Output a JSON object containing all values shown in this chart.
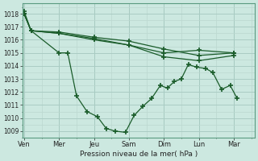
{
  "xlabel": "Pression niveau de la mer( hPa )",
  "bg_color": "#cce8e0",
  "grid_major_color": "#aaccc4",
  "grid_minor_color": "#bcd8d0",
  "line_color": "#1a5c2a",
  "ylim": [
    1008.5,
    1018.8
  ],
  "yticks": [
    1009,
    1010,
    1011,
    1012,
    1013,
    1014,
    1015,
    1016,
    1017,
    1018
  ],
  "xtick_labels": [
    "Ven",
    "Mer",
    "Jeu",
    "Sam",
    "Dim",
    "Lun",
    "Mar"
  ],
  "xtick_positions": [
    0,
    2,
    4,
    6,
    8,
    10,
    12
  ],
  "xlim": [
    -0.1,
    13.2
  ],
  "line1_x": [
    0,
    0.4,
    2.0,
    4.0,
    6.0,
    8.0,
    10.0,
    12.0
  ],
  "line1_y": [
    1018.0,
    1016.7,
    1016.6,
    1016.2,
    1015.9,
    1015.3,
    1014.8,
    1015.0
  ],
  "line2_x": [
    0,
    0.4,
    2.0,
    4.0,
    6.0,
    8.0,
    10.0,
    12.0
  ],
  "line2_y": [
    1018.0,
    1016.7,
    1016.5,
    1016.1,
    1015.6,
    1014.7,
    1014.4,
    1014.8
  ],
  "line3_x": [
    0,
    0.4,
    2.0,
    4.0,
    6.0,
    8.0,
    10.0,
    12.0
  ],
  "line3_y": [
    1018.0,
    1016.7,
    1016.5,
    1016.0,
    1015.6,
    1015.0,
    1015.2,
    1015.0
  ],
  "line4_x": [
    0,
    0.4,
    2.0,
    2.5,
    3.0,
    3.6,
    4.2,
    4.7,
    5.2,
    5.8,
    6.3,
    6.8,
    7.3,
    7.8,
    8.2,
    8.6,
    9.0,
    9.4,
    9.9,
    10.4,
    10.8,
    11.3,
    11.8,
    12.2
  ],
  "line4_y": [
    1018.2,
    1016.7,
    1015.0,
    1015.0,
    1011.7,
    1010.5,
    1010.1,
    1009.2,
    1009.0,
    1008.9,
    1010.2,
    1010.9,
    1011.5,
    1012.5,
    1012.3,
    1012.8,
    1013.0,
    1014.1,
    1013.9,
    1013.8,
    1013.5,
    1012.2,
    1012.5,
    1011.5
  ]
}
